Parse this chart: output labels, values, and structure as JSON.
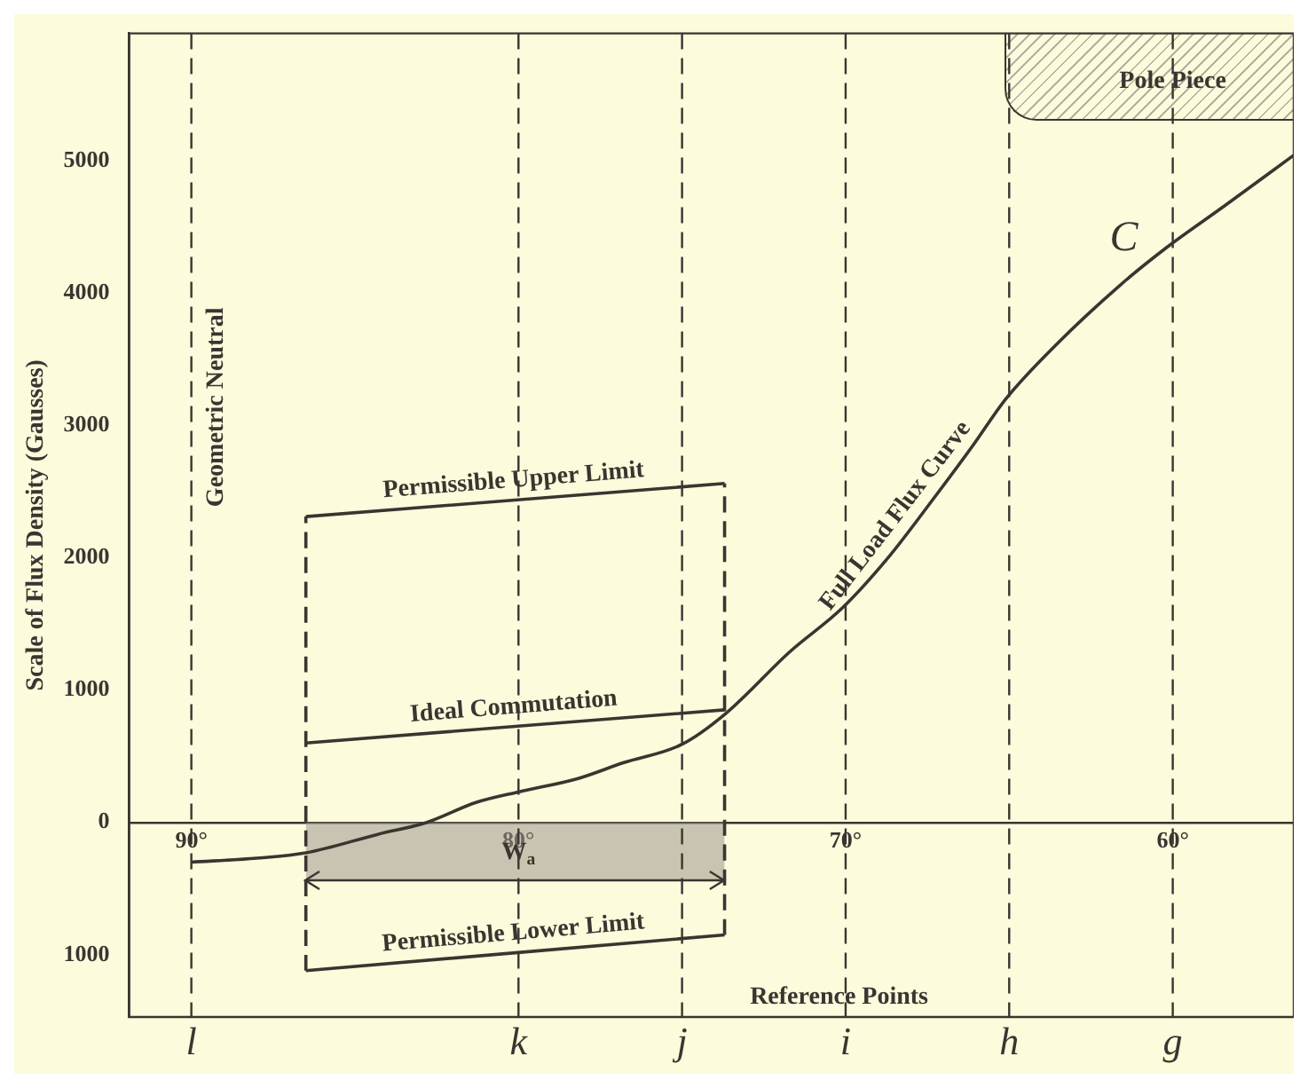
{
  "chart_data": {
    "type": "line",
    "ylabel": "Scale of Flux Density (Gausses)",
    "xlim": [
      91.9,
      56.3
    ],
    "ylim": [
      -1470,
      5960
    ],
    "xticks": [
      {
        "value": 90,
        "label": "90°"
      },
      {
        "value": 80,
        "label": "80°"
      },
      {
        "value": 70,
        "label": "70°"
      },
      {
        "value": 60,
        "label": "60°"
      }
    ],
    "yticks": [
      {
        "value": -1000,
        "label": "1000"
      },
      0,
      1000,
      2000,
      3000,
      4000,
      5000
    ],
    "grid": false,
    "legend": false,
    "marker": "none",
    "series": [
      {
        "name": "Full Load Flux Curve",
        "color": "#3a3530",
        "line_style": "solid",
        "x": [
          90,
          88,
          86.5,
          84.3,
          82.8,
          81.3,
          80,
          78.2,
          76.8,
          75,
          73.7,
          71.7,
          70.1,
          68.7,
          67.3,
          66.1,
          65.1,
          63.6,
          61.6,
          60.2,
          58.4,
          56.3
        ],
        "values": [
          -300,
          -270,
          -230,
          -90,
          0,
          150,
          230,
          330,
          450,
          590,
          815,
          1290,
          1620,
          2000,
          2450,
          2850,
          3200,
          3600,
          4060,
          4340,
          4660,
          5040
        ]
      },
      {
        "name": "Permissible Upper Limit",
        "type": "line",
        "color": "#3a3530",
        "line_style": "solid",
        "x": [
          86.5,
          73.7
        ],
        "values": [
          2310,
          2560
        ]
      },
      {
        "name": "Ideal Commutation",
        "type": "line",
        "color": "#3a3530",
        "line_style": "solid",
        "x": [
          86.5,
          73.7
        ],
        "values": [
          600,
          850
        ]
      },
      {
        "name": "Permissible Lower Limit",
        "color": "#3a3530",
        "line_style": "solid",
        "x": [
          86.5,
          73.7
        ],
        "values": [
          -1120,
          -850
        ]
      },
      {
        "type": "line",
        "color": "#3a3530",
        "line_style": "dashed",
        "x": [
          86.5,
          86.5
        ],
        "values": [
          -1120,
          2310
        ]
      },
      {
        "color": "#3a3530",
        "line_style": "dashed",
        "x": [
          73.7,
          73.7
        ],
        "values": [
          -850,
          2560
        ]
      },
      {
        "type": "area",
        "color": "#9a958a",
        "x": [
          86.5,
          73.7
        ],
        "values": [
          -440,
          -440
        ]
      }
    ],
    "ref_lines": [
      {
        "axis": "x",
        "value": 90,
        "label": "l",
        "line_style": "dashed"
      },
      {
        "axis": "x",
        "value": 80,
        "label": "k",
        "line_style": "dashed"
      },
      {
        "axis": "x",
        "value": 75,
        "label": "j",
        "line_style": "dashed"
      },
      {
        "axis": "x",
        "value": 70,
        "label": "i",
        "line_style": "dashed"
      },
      {
        "axis": "x",
        "value": 65,
        "label": "h",
        "line_style": "dashed"
      },
      {
        "axis": "x",
        "value": 60,
        "label": "g",
        "line_style": "dashed"
      }
    ],
    "annotations": [
      "Geometric Neutral",
      "C",
      {
        "text": "W$_{a}$",
        "x": 80,
        "y": -230
      },
      {
        "text": "Reference Points",
        "x": 70.2,
        "y": -1320
      },
      {
        "text": "Pole Piece",
        "x": 60,
        "y": 5600
      }
    ]
  }
}
